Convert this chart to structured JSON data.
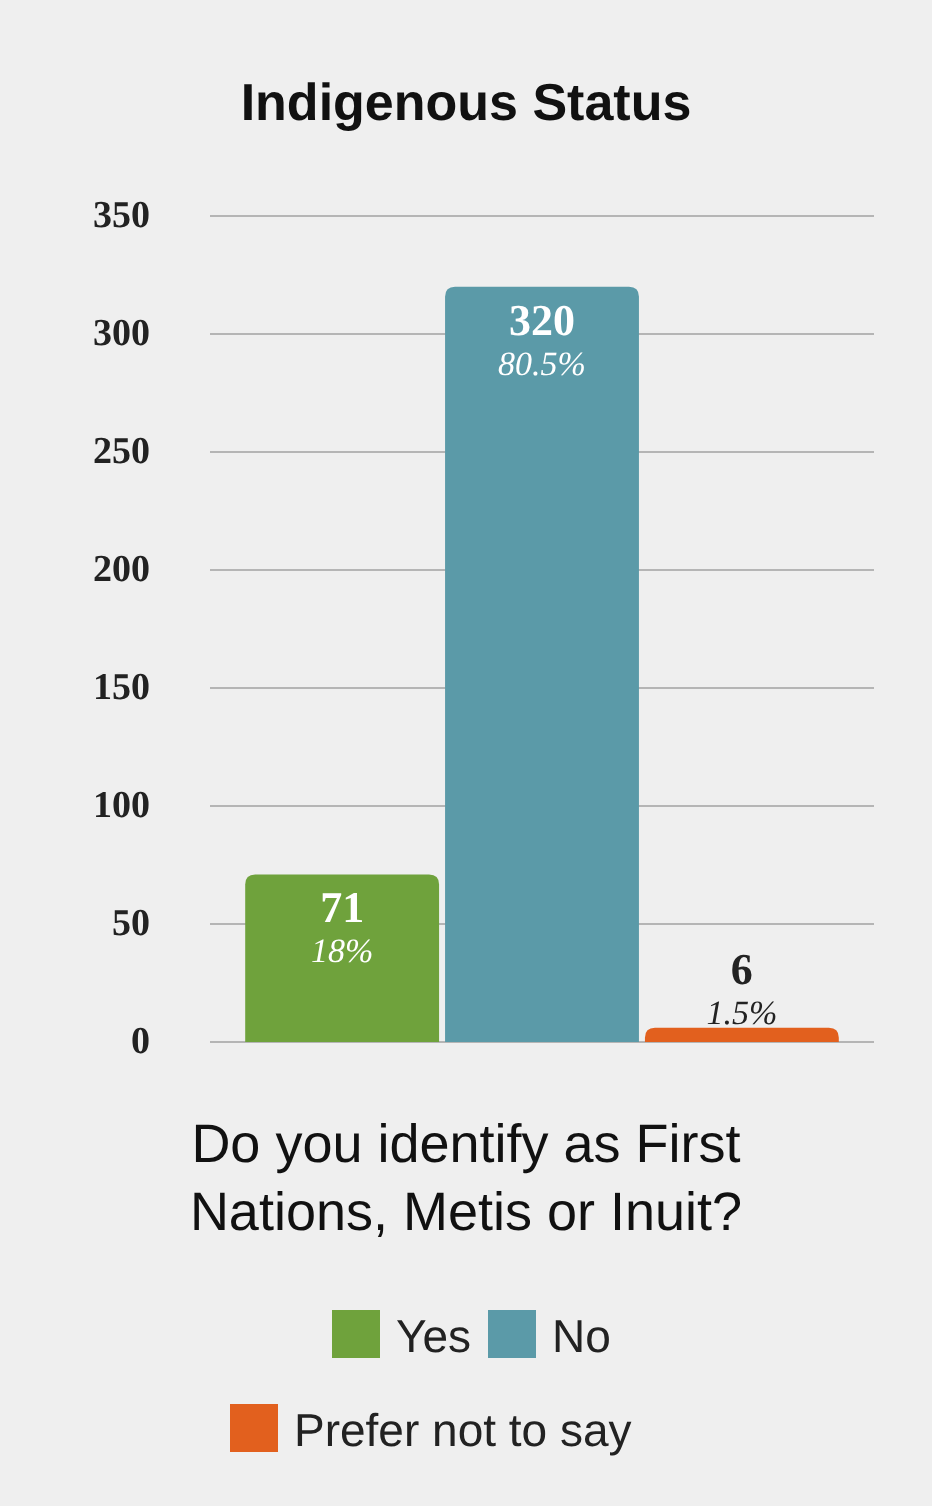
{
  "chart_data": {
    "type": "bar",
    "title": "Indigenous Status",
    "xlabel": "Do you identify as First Nations, Metis or Inuit?",
    "categories": [
      null
    ],
    "series": [
      {
        "name": "Yes",
        "color": "#6fa23c",
        "values": [
          71
        ],
        "value_labels": [
          "71\n18%"
        ]
      },
      {
        "name": "No",
        "color": "#5b9aa8",
        "values": [
          320
        ],
        "value_labels": [
          "320\n80.5%"
        ]
      },
      {
        "name": "Prefer not to say",
        "color": "#e2601e",
        "values": [
          6
        ],
        "value_labels": [
          "6\n1.5%"
        ]
      }
    ],
    "ylim": [
      0,
      350
    ],
    "yticks": [
      0,
      50,
      100,
      150,
      200,
      250,
      300,
      350
    ],
    "grid": "y",
    "legend": "bottom"
  }
}
